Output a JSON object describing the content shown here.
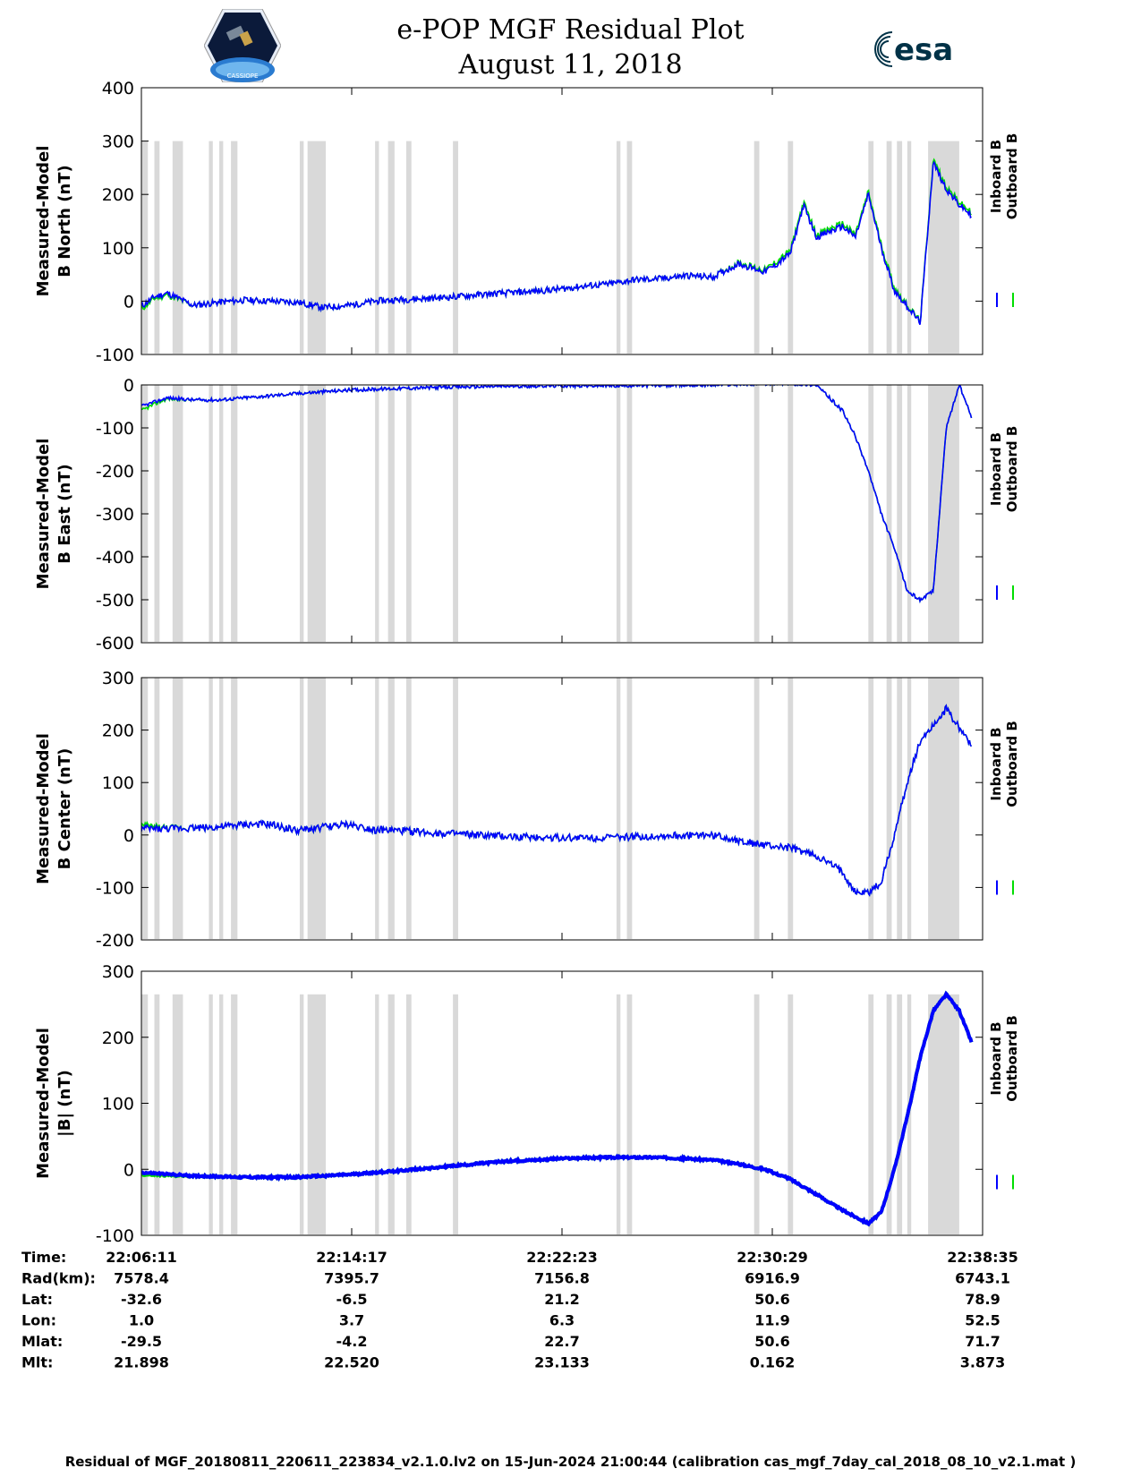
{
  "header": {
    "title": "e-POP MGF Residual Plot",
    "date": "August 11, 2018",
    "logo_left": "CASSIOPE",
    "logo_right": "esa"
  },
  "colors": {
    "inboard": "#0000ff",
    "outboard": "#00dd00",
    "gap": "#d9d9d9"
  },
  "chart_data": [
    {
      "type": "line",
      "ylabel": [
        "Measured-Model",
        "B North (nT)"
      ],
      "ylim": [
        -100,
        400
      ],
      "yticks": [
        -100,
        0,
        100,
        200,
        300,
        400
      ],
      "gap_top": 300,
      "x": [
        0,
        0.5,
        1,
        2,
        3,
        4,
        5,
        6,
        7,
        8,
        9,
        10,
        11,
        12,
        13,
        14,
        15,
        16,
        17,
        18,
        19,
        20,
        21,
        22,
        23,
        24,
        24.5,
        25,
        25.5,
        26,
        26.5,
        27,
        27.5,
        28,
        28.5,
        29,
        29.5,
        30,
        30.5,
        31,
        31.5,
        32
      ],
      "series": [
        {
          "name": "Inboard B",
          "values": [
            -10,
            8,
            15,
            -8,
            -2,
            2,
            0,
            -2,
            -12,
            -8,
            0,
            3,
            5,
            8,
            12,
            15,
            18,
            22,
            28,
            32,
            40,
            42,
            48,
            45,
            70,
            55,
            70,
            90,
            180,
            120,
            130,
            140,
            120,
            200,
            100,
            20,
            -10,
            -40,
            260,
            210,
            180,
            160
          ]
        },
        {
          "name": "Outboard B",
          "values": [
            -15,
            5,
            12,
            -8,
            -2,
            2,
            0,
            -2,
            -12,
            -8,
            0,
            3,
            5,
            8,
            12,
            15,
            18,
            22,
            28,
            32,
            40,
            42,
            48,
            45,
            72,
            58,
            75,
            95,
            185,
            125,
            135,
            145,
            125,
            205,
            105,
            25,
            -8,
            -38,
            265,
            215,
            185,
            165
          ]
        }
      ]
    },
    {
      "type": "line",
      "ylabel": [
        "Measured-Model",
        "B East (nT)"
      ],
      "ylim": [
        -600,
        0
      ],
      "yticks": [
        -600,
        -500,
        -400,
        -300,
        -200,
        -100,
        0
      ],
      "gap_top": 0,
      "x": [
        0,
        0.5,
        1,
        2,
        3,
        4,
        6,
        8,
        10,
        12,
        14,
        16,
        18,
        20,
        22,
        24,
        25,
        26,
        27,
        27.5,
        28,
        28.5,
        29,
        29.5,
        30,
        30.5,
        31,
        31.5,
        32
      ],
      "series": [
        {
          "name": "Inboard B",
          "values": [
            -50,
            -40,
            -30,
            -35,
            -35,
            -30,
            -20,
            -12,
            -8,
            -5,
            -3,
            -2,
            -2,
            -1,
            0,
            3,
            3,
            0,
            -60,
            -120,
            -200,
            -300,
            -380,
            -480,
            -500,
            -480,
            -100,
            0,
            -80
          ]
        },
        {
          "name": "Outboard B",
          "values": [
            -60,
            -45,
            -32,
            -35,
            -35,
            -30,
            -20,
            -12,
            -8,
            -5,
            -3,
            -2,
            -2,
            -1,
            0,
            3,
            3,
            0,
            -60,
            -120,
            -200,
            -300,
            -380,
            -480,
            -500,
            -480,
            -100,
            0,
            -80
          ]
        }
      ]
    },
    {
      "type": "line",
      "ylabel": [
        "Measured-Model",
        "B Center (nT)"
      ],
      "ylim": [
        -200,
        300
      ],
      "yticks": [
        -200,
        -100,
        0,
        100,
        200,
        300
      ],
      "gap_top": 300,
      "x": [
        0,
        1,
        2,
        3,
        4,
        5,
        6,
        7,
        8,
        9,
        10,
        12,
        14,
        16,
        18,
        20,
        22,
        24,
        25,
        26,
        27,
        27.5,
        28,
        28.5,
        29,
        29.5,
        30,
        31,
        32
      ],
      "series": [
        {
          "name": "Inboard B",
          "values": [
            12,
            12,
            14,
            15,
            20,
            20,
            8,
            15,
            20,
            10,
            8,
            2,
            -3,
            -5,
            -5,
            -2,
            0,
            -20,
            -25,
            -40,
            -70,
            -110,
            -110,
            -90,
            0,
            100,
            180,
            240,
            170
          ]
        },
        {
          "name": "Outboard B",
          "values": [
            18,
            13,
            14,
            15,
            20,
            20,
            8,
            15,
            20,
            10,
            8,
            2,
            -3,
            -5,
            -5,
            -2,
            0,
            -20,
            -25,
            -40,
            -70,
            -110,
            -110,
            -90,
            0,
            100,
            180,
            240,
            170
          ]
        }
      ]
    },
    {
      "type": "line",
      "ylabel": [
        "Measured-Model",
        "|B| (nT)"
      ],
      "ylim": [
        -100,
        300
      ],
      "yticks": [
        -100,
        0,
        100,
        200,
        300
      ],
      "gap_top": 265,
      "x": [
        0,
        2,
        4,
        6,
        8,
        10,
        12,
        14,
        16,
        18,
        20,
        22,
        23,
        24,
        25,
        26,
        27,
        28,
        28.5,
        29,
        29.5,
        30,
        30.5,
        31,
        31.5,
        32
      ],
      "series": [
        {
          "name": "Inboard B",
          "values": [
            -5,
            -10,
            -12,
            -12,
            -8,
            -2,
            5,
            12,
            16,
            18,
            18,
            14,
            8,
            0,
            -15,
            -38,
            -62,
            -82,
            -65,
            0,
            80,
            170,
            240,
            265,
            240,
            190
          ]
        },
        {
          "name": "Outboard B",
          "values": [
            -8,
            -10,
            -12,
            -12,
            -8,
            -2,
            5,
            12,
            16,
            18,
            18,
            14,
            8,
            0,
            -15,
            -38,
            -62,
            -82,
            -65,
            0,
            80,
            170,
            240,
            265,
            240,
            190
          ]
        }
      ]
    }
  ],
  "x_ticks": [
    0,
    8.1,
    16.2,
    24.3,
    32.4
  ],
  "gap_intervals": [
    [
      0,
      0.25
    ],
    [
      0.5,
      0.7
    ],
    [
      1.2,
      1.6
    ],
    [
      2.6,
      2.75
    ],
    [
      3.0,
      3.15
    ],
    [
      3.45,
      3.7
    ],
    [
      6.1,
      6.25
    ],
    [
      6.4,
      7.1
    ],
    [
      9.0,
      9.15
    ],
    [
      9.5,
      9.75
    ],
    [
      10.2,
      10.4
    ],
    [
      12.0,
      12.2
    ],
    [
      18.3,
      18.45
    ],
    [
      18.7,
      18.9
    ],
    [
      23.6,
      23.8
    ],
    [
      24.9,
      25.1
    ],
    [
      28.0,
      28.2
    ],
    [
      28.7,
      28.9
    ],
    [
      29.1,
      29.3
    ],
    [
      29.5,
      29.65
    ],
    [
      30.3,
      31.5
    ]
  ],
  "info_table": {
    "row_labels": [
      "Time:",
      "Rad(km):",
      "Lat:",
      "Lon:",
      "Mlat:",
      "Mlt:"
    ],
    "columns": [
      [
        "22:06:11",
        "7578.4",
        "-32.6",
        "1.0",
        "-29.5",
        "21.898"
      ],
      [
        "22:14:17",
        "7395.7",
        "-6.5",
        "3.7",
        "-4.2",
        "22.520"
      ],
      [
        "22:22:23",
        "7156.8",
        "21.2",
        "6.3",
        "22.7",
        "23.133"
      ],
      [
        "22:30:29",
        "6916.9",
        "50.6",
        "11.9",
        "50.6",
        "0.162"
      ],
      [
        "22:38:35",
        "6743.1",
        "78.9",
        "52.5",
        "71.7",
        "3.873"
      ]
    ]
  },
  "footer": "Residual of MGF_20180811_220611_223834_v2.1.0.lv2 on 15-Jun-2024 21:00:44 (calibration cas_mgf_7day_cal_2018_08_10_v2.1.mat )"
}
